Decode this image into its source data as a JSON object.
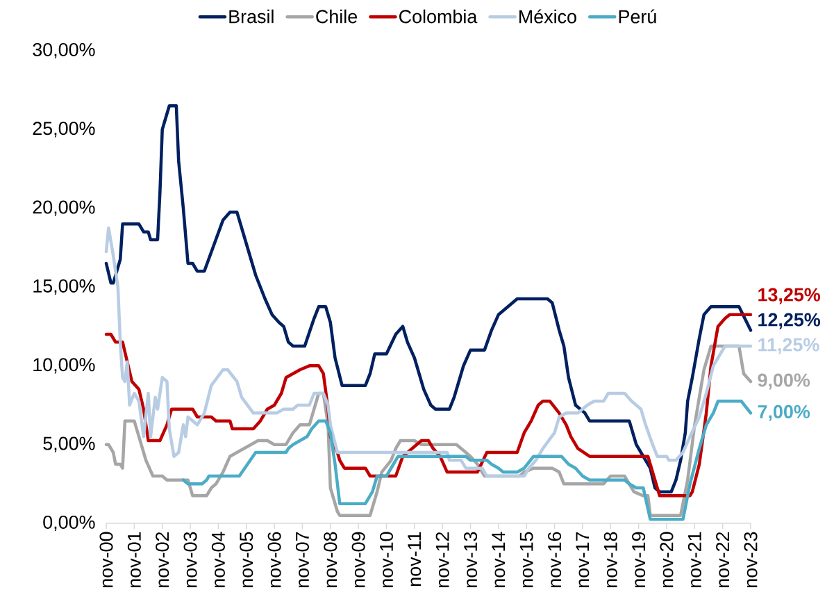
{
  "chart_data": {
    "type": "line",
    "xlim": [
      "2000-11",
      "2023-11"
    ],
    "ylim": [
      0,
      30
    ],
    "xticks": [
      {
        "value": "2000-11",
        "label": "nov-00"
      },
      {
        "value": "2001-11",
        "label": "nov-01"
      },
      {
        "value": "2002-11",
        "label": "nov-02"
      },
      {
        "value": "2003-11",
        "label": "nov-03"
      },
      {
        "value": "2004-11",
        "label": "nov-04"
      },
      {
        "value": "2005-11",
        "label": "nov-05"
      },
      {
        "value": "2006-11",
        "label": "nov-06"
      },
      {
        "value": "2007-11",
        "label": "nov-07"
      },
      {
        "value": "2008-11",
        "label": "nov-08"
      },
      {
        "value": "2009-11",
        "label": "nov-09"
      },
      {
        "value": "2010-11",
        "label": "nov-10"
      },
      {
        "value": "2011-11",
        "label": "nov-11"
      },
      {
        "value": "2012-11",
        "label": "nov-12"
      },
      {
        "value": "2013-11",
        "label": "nov-13"
      },
      {
        "value": "2014-11",
        "label": "nov-14"
      },
      {
        "value": "2015-11",
        "label": "nov-15"
      },
      {
        "value": "2016-11",
        "label": "nov-16"
      },
      {
        "value": "2017-11",
        "label": "nov-17"
      },
      {
        "value": "2018-11",
        "label": "nov-18"
      },
      {
        "value": "2019-11",
        "label": "nov-19"
      },
      {
        "value": "2020-11",
        "label": "nov-20"
      },
      {
        "value": "2021-11",
        "label": "nov-21"
      },
      {
        "value": "2022-11",
        "label": "nov-22"
      },
      {
        "value": "2023-11",
        "label": "nov-23"
      }
    ],
    "yticks": [
      {
        "value": 0,
        "label": "0,00%"
      },
      {
        "value": 5,
        "label": "5,00%"
      },
      {
        "value": 10,
        "label": "10,00%"
      },
      {
        "value": 15,
        "label": "15,00%"
      },
      {
        "value": 20,
        "label": "20,00%"
      },
      {
        "value": 25,
        "label": "25,00%"
      },
      {
        "value": 30,
        "label": "30,00%"
      }
    ],
    "legend": "top",
    "series": [
      {
        "name": "Brasil",
        "color": "#002060",
        "x": [
          "2000-11",
          "2001-01",
          "2001-02",
          "2001-05",
          "2001-06",
          "2002-01",
          "2002-03",
          "2002-05",
          "2002-06",
          "2002-09",
          "2002-10",
          "2002-11",
          "2002-12",
          "2003-02",
          "2003-05",
          "2003-06",
          "2003-08",
          "2003-10",
          "2003-12",
          "2004-02",
          "2004-05",
          "2005-01",
          "2005-04",
          "2005-07",
          "2005-12",
          "2006-03",
          "2006-07",
          "2006-10",
          "2007-01",
          "2007-03",
          "2007-05",
          "2007-07",
          "2007-12",
          "2008-04",
          "2008-06",
          "2008-09",
          "2008-11",
          "2009-01",
          "2009-04",
          "2010-02",
          "2010-04",
          "2010-06",
          "2010-11",
          "2011-03",
          "2011-06",
          "2011-08",
          "2011-11",
          "2012-03",
          "2012-06",
          "2012-08",
          "2013-02",
          "2013-04",
          "2013-06",
          "2013-08",
          "2013-11",
          "2014-05",
          "2014-08",
          "2014-11",
          "2015-07",
          "2016-08",
          "2016-10",
          "2017-01",
          "2017-03",
          "2017-05",
          "2017-08",
          "2017-12",
          "2018-02",
          "2019-07",
          "2019-10",
          "2019-12",
          "2020-04",
          "2020-06",
          "2020-08",
          "2021-01",
          "2021-03",
          "2021-05",
          "2021-07",
          "2021-08",
          "2021-10",
          "2022-01",
          "2022-03",
          "2022-06",
          "2023-06",
          "2023-11"
        ],
        "values": [
          16.5,
          15.25,
          15.25,
          16.75,
          19.0,
          19.0,
          18.5,
          18.5,
          18.0,
          18.0,
          21.0,
          25.0,
          25.5,
          26.5,
          26.5,
          23.0,
          20.0,
          16.5,
          16.5,
          16.0,
          16.0,
          19.25,
          19.75,
          19.75,
          17.25,
          15.75,
          14.25,
          13.25,
          12.75,
          12.5,
          11.5,
          11.25,
          11.25,
          13.0,
          13.75,
          13.75,
          12.75,
          10.5,
          8.75,
          8.75,
          9.5,
          10.75,
          10.75,
          12.0,
          12.5,
          11.5,
          10.5,
          8.5,
          7.5,
          7.25,
          7.25,
          8.0,
          9.0,
          10.0,
          11.0,
          11.0,
          12.25,
          13.25,
          14.25,
          14.25,
          14.0,
          12.25,
          11.25,
          9.25,
          7.5,
          7.0,
          6.5,
          6.5,
          5.0,
          4.5,
          3.5,
          2.25,
          2.0,
          2.0,
          2.75,
          4.0,
          5.75,
          7.75,
          9.25,
          11.75,
          13.25,
          13.75,
          13.75,
          12.25
        ]
      },
      {
        "name": "Chile",
        "color": "#a6a6a6",
        "x": [
          "2000-11",
          "2000-12",
          "2001-02",
          "2001-03",
          "2001-05",
          "2001-06",
          "2001-07",
          "2001-11",
          "2002-01",
          "2002-03",
          "2002-04",
          "2002-07",
          "2002-11",
          "2003-01",
          "2003-10",
          "2003-12",
          "2004-06",
          "2004-08",
          "2004-10",
          "2005-01",
          "2005-04",
          "2005-07",
          "2005-10",
          "2006-01",
          "2006-04",
          "2006-08",
          "2006-11",
          "2007-04",
          "2007-07",
          "2007-10",
          "2008-02",
          "2008-04",
          "2008-06",
          "2008-08",
          "2008-10",
          "2008-11",
          "2009-02",
          "2009-03",
          "2010-04",
          "2010-07",
          "2010-09",
          "2011-01",
          "2011-03",
          "2011-05",
          "2011-11",
          "2012-02",
          "2013-05",
          "2013-09",
          "2013-11",
          "2014-02",
          "2014-05",
          "2015-08",
          "2015-10",
          "2016-02",
          "2016-10",
          "2017-01",
          "2017-03",
          "2018-08",
          "2018-11",
          "2019-05",
          "2019-07",
          "2019-09",
          "2020-01",
          "2020-03",
          "2020-04",
          "2021-05",
          "2021-08",
          "2021-11",
          "2022-03",
          "2022-06",
          "2023-06",
          "2023-08",
          "2023-11"
        ],
        "values": [
          5.0,
          5.0,
          4.5,
          3.75,
          3.75,
          3.5,
          6.5,
          6.5,
          5.5,
          4.5,
          4.0,
          3.0,
          3.0,
          2.75,
          2.75,
          1.75,
          1.75,
          2.25,
          2.5,
          3.25,
          4.25,
          4.5,
          4.75,
          5.0,
          5.25,
          5.25,
          5.0,
          5.0,
          5.75,
          6.25,
          6.25,
          7.25,
          8.25,
          8.25,
          6.25,
          2.25,
          0.75,
          0.5,
          0.5,
          2.0,
          3.25,
          4.0,
          4.75,
          5.25,
          5.25,
          5.0,
          5.0,
          4.5,
          4.25,
          3.75,
          3.0,
          3.0,
          3.25,
          3.5,
          3.5,
          3.25,
          2.5,
          2.5,
          3.0,
          3.0,
          2.5,
          2.0,
          1.75,
          1.75,
          0.5,
          0.5,
          2.75,
          6.25,
          9.75,
          11.25,
          11.25,
          9.5,
          9.0
        ]
      },
      {
        "name": "Colombia",
        "color": "#c00000",
        "x": [
          "2000-11",
          "2001-01",
          "2001-03",
          "2001-06",
          "2001-08",
          "2001-10",
          "2002-01",
          "2002-03",
          "2002-05",
          "2002-10",
          "2003-01",
          "2003-03",
          "2003-12",
          "2004-02",
          "2004-08",
          "2004-10",
          "2005-04",
          "2005-05",
          "2006-02",
          "2006-05",
          "2006-08",
          "2006-11",
          "2007-02",
          "2007-04",
          "2007-07",
          "2007-10",
          "2008-02",
          "2008-06",
          "2008-08",
          "2008-10",
          "2008-11",
          "2009-02",
          "2009-03",
          "2009-05",
          "2010-02",
          "2010-04",
          "2011-03",
          "2011-06",
          "2011-10",
          "2012-02",
          "2012-05",
          "2012-07",
          "2012-10",
          "2013-01",
          "2014-02",
          "2014-06",
          "2015-07",
          "2015-10",
          "2016-01",
          "2016-04",
          "2016-06",
          "2016-09",
          "2017-01",
          "2017-04",
          "2017-06",
          "2017-09",
          "2018-02",
          "2020-03",
          "2020-04",
          "2020-07",
          "2020-08",
          "2021-09",
          "2021-10",
          "2022-01",
          "2022-04",
          "2022-06",
          "2022-09",
          "2022-12",
          "2023-02",
          "2023-11"
        ],
        "values": [
          12.0,
          12.0,
          11.5,
          11.5,
          10.25,
          9.0,
          8.5,
          7.25,
          5.25,
          5.25,
          6.25,
          7.25,
          7.25,
          6.75,
          6.75,
          6.5,
          6.5,
          6.0,
          6.0,
          6.5,
          7.25,
          7.5,
          8.25,
          9.25,
          9.5,
          9.75,
          10.0,
          10.0,
          9.5,
          7.25,
          5.5,
          4.5,
          4.0,
          3.5,
          3.5,
          3.0,
          3.0,
          4.25,
          4.75,
          5.25,
          5.25,
          4.75,
          4.25,
          3.25,
          3.25,
          4.5,
          4.5,
          5.75,
          6.5,
          7.5,
          7.75,
          7.75,
          7.0,
          6.25,
          5.5,
          4.75,
          4.25,
          4.25,
          3.75,
          2.25,
          1.75,
          1.75,
          2.0,
          3.75,
          7.0,
          10.0,
          12.5,
          13.0,
          13.25,
          13.25
        ]
      },
      {
        "name": "México",
        "color": "#b8cce4",
        "x": [
          "2000-11",
          "2000-12",
          "2001-02",
          "2001-04",
          "2001-05",
          "2001-06",
          "2001-07",
          "2001-08",
          "2001-09",
          "2001-11",
          "2002-01",
          "2002-03",
          "2002-05",
          "2002-06",
          "2002-08",
          "2002-09",
          "2002-11",
          "2003-01",
          "2003-02",
          "2003-04",
          "2003-06",
          "2003-08",
          "2003-09",
          "2003-10",
          "2004-02",
          "2004-05",
          "2004-08",
          "2005-01",
          "2005-03",
          "2005-07",
          "2005-09",
          "2006-02",
          "2006-12",
          "2007-03",
          "2007-07",
          "2007-09",
          "2008-02",
          "2008-04",
          "2008-08",
          "2008-10",
          "2008-11",
          "2009-02",
          "2013-01",
          "2013-02",
          "2013-07",
          "2013-09",
          "2014-04",
          "2014-06",
          "2015-10",
          "2015-12",
          "2016-03",
          "2016-06",
          "2016-11",
          "2017-01",
          "2017-04",
          "2017-09",
          "2018-01",
          "2018-04",
          "2018-08",
          "2018-10",
          "2019-05",
          "2019-08",
          "2019-12",
          "2020-02",
          "2020-05",
          "2020-07",
          "2020-11",
          "2020-12",
          "2021-03",
          "2021-06",
          "2021-09",
          "2022-01",
          "2022-04",
          "2022-07",
          "2022-10",
          "2022-12",
          "2023-11"
        ],
        "values": [
          17.25,
          18.75,
          17.0,
          15.0,
          11.5,
          9.25,
          9.0,
          10.25,
          7.5,
          8.25,
          7.75,
          5.5,
          8.25,
          5.5,
          8.0,
          7.25,
          9.25,
          9.0,
          6.0,
          4.25,
          4.5,
          6.25,
          5.5,
          6.75,
          6.25,
          7.0,
          8.75,
          9.75,
          9.75,
          9.0,
          8.0,
          7.0,
          7.0,
          7.25,
          7.25,
          7.5,
          7.5,
          8.25,
          8.25,
          7.5,
          6.25,
          4.5,
          4.5,
          4.0,
          4.0,
          3.5,
          3.5,
          3.0,
          3.0,
          3.5,
          4.0,
          4.75,
          5.75,
          6.75,
          7.0,
          7.0,
          7.5,
          7.75,
          7.75,
          8.25,
          8.25,
          7.75,
          7.25,
          6.25,
          5.0,
          4.25,
          4.25,
          4.0,
          4.0,
          4.5,
          5.5,
          6.75,
          8.25,
          10.0,
          10.75,
          11.25,
          11.25
        ]
      },
      {
        "name": "Perú",
        "color": "#4bacc6",
        "x": [
          "2003-08",
          "2003-10",
          "2004-04",
          "2004-06",
          "2004-07",
          "2005-08",
          "2006-03",
          "2007-04",
          "2007-05",
          "2007-07",
          "2007-10",
          "2008-01",
          "2008-03",
          "2008-06",
          "2008-09",
          "2008-11",
          "2009-01",
          "2009-03",
          "2010-02",
          "2010-05",
          "2010-07",
          "2010-11",
          "2011-02",
          "2011-04",
          "2013-09",
          "2013-11",
          "2014-06",
          "2014-08",
          "2014-11",
          "2015-01",
          "2015-07",
          "2015-10",
          "2016-02",
          "2017-02",
          "2017-05",
          "2017-08",
          "2017-11",
          "2018-02",
          "2019-05",
          "2019-07",
          "2019-10",
          "2020-01",
          "2020-04",
          "2021-06",
          "2021-09",
          "2022-01",
          "2022-04",
          "2022-07",
          "2022-09",
          "2023-07",
          "2023-11"
        ],
        "values": [
          2.75,
          2.5,
          2.5,
          2.75,
          3.0,
          3.0,
          4.5,
          4.5,
          4.75,
          5.0,
          5.25,
          5.5,
          6.0,
          6.5,
          6.5,
          5.75,
          3.75,
          1.25,
          1.25,
          2.0,
          3.0,
          3.0,
          3.75,
          4.25,
          4.25,
          4.0,
          4.0,
          3.75,
          3.5,
          3.25,
          3.25,
          3.5,
          4.25,
          4.25,
          3.75,
          3.5,
          3.0,
          2.75,
          2.75,
          2.5,
          2.25,
          2.25,
          0.25,
          0.25,
          2.5,
          4.75,
          6.25,
          7.0,
          7.75,
          7.75,
          7.0
        ]
      }
    ],
    "annotations": [
      {
        "text": "13,25%",
        "x": "2023-11",
        "y": 13.25
      },
      {
        "text": "12,25%",
        "x": "2023-11",
        "y": 12.25
      },
      {
        "text": "11,25%",
        "x": "2023-11",
        "y": 11.25
      },
      {
        "text": "9,00%",
        "x": "2023-11",
        "y": 9.0
      },
      {
        "text": "7,00%",
        "x": "2023-11",
        "y": 7.0
      }
    ]
  }
}
